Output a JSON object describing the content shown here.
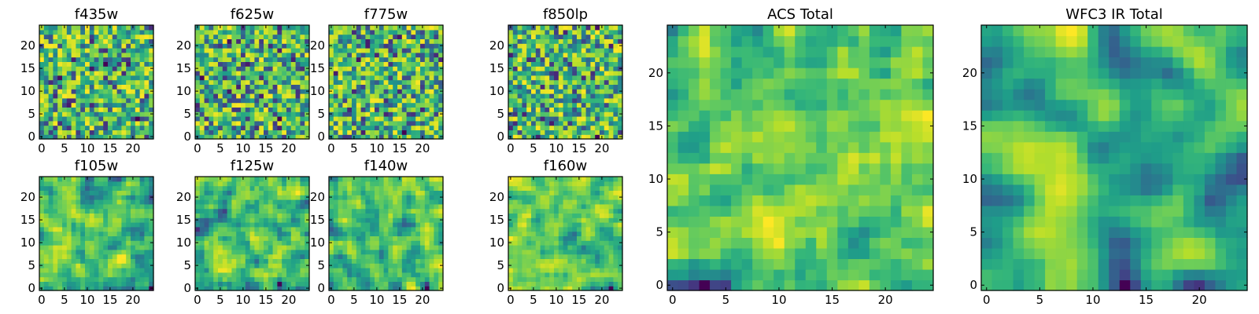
{
  "figure_title": "",
  "chart_data": [
    {
      "type": "heatmap",
      "title": "f435w",
      "xticks": [
        0,
        5,
        10,
        15,
        20
      ],
      "yticks": [
        0,
        5,
        10,
        15,
        20
      ],
      "xlim": [
        0,
        24
      ],
      "ylim": [
        0,
        24
      ],
      "grid": false,
      "size": 25,
      "seed": 11,
      "smooth": 0,
      "colormap": "viridis"
    },
    {
      "type": "heatmap",
      "title": "f625w",
      "xticks": [
        0,
        5,
        10,
        15,
        20
      ],
      "yticks": [
        0,
        5,
        10,
        15,
        20
      ],
      "xlim": [
        0,
        24
      ],
      "ylim": [
        0,
        24
      ],
      "grid": false,
      "size": 25,
      "seed": 23,
      "smooth": 0,
      "colormap": "viridis"
    },
    {
      "type": "heatmap",
      "title": "f775w",
      "xticks": [
        0,
        5,
        10,
        15,
        20
      ],
      "yticks": [
        0,
        5,
        10,
        15,
        20
      ],
      "xlim": [
        0,
        24
      ],
      "ylim": [
        0,
        24
      ],
      "grid": false,
      "size": 25,
      "seed": 37,
      "smooth": 0,
      "colormap": "viridis"
    },
    {
      "type": "heatmap",
      "title": "f850lp",
      "xticks": [
        0,
        5,
        10,
        15,
        20
      ],
      "yticks": [
        0,
        5,
        10,
        15,
        20
      ],
      "xlim": [
        0,
        24
      ],
      "ylim": [
        0,
        24
      ],
      "grid": false,
      "size": 25,
      "seed": 41,
      "smooth": 0,
      "colormap": "viridis"
    },
    {
      "type": "heatmap",
      "title": "f105w",
      "xticks": [
        0,
        5,
        10,
        15,
        20
      ],
      "yticks": [
        0,
        5,
        10,
        15,
        20
      ],
      "xlim": [
        0,
        24
      ],
      "ylim": [
        0,
        24
      ],
      "grid": false,
      "size": 25,
      "seed": 53,
      "smooth": 1,
      "colormap": "viridis"
    },
    {
      "type": "heatmap",
      "title": "f125w",
      "xticks": [
        0,
        5,
        10,
        15,
        20
      ],
      "yticks": [
        0,
        5,
        10,
        15,
        20
      ],
      "xlim": [
        0,
        24
      ],
      "ylim": [
        0,
        24
      ],
      "grid": false,
      "size": 25,
      "seed": 67,
      "smooth": 1,
      "colormap": "viridis"
    },
    {
      "type": "heatmap",
      "title": "f140w",
      "xticks": [
        0,
        5,
        10,
        15,
        20
      ],
      "yticks": [
        0,
        5,
        10,
        15,
        20
      ],
      "xlim": [
        0,
        24
      ],
      "ylim": [
        0,
        24
      ],
      "grid": false,
      "size": 25,
      "seed": 79,
      "smooth": 1,
      "colormap": "viridis"
    },
    {
      "type": "heatmap",
      "title": "f160w",
      "xticks": [
        0,
        5,
        10,
        15,
        20
      ],
      "yticks": [
        0,
        5,
        10,
        15,
        20
      ],
      "xlim": [
        0,
        24
      ],
      "ylim": [
        0,
        24
      ],
      "grid": false,
      "size": 25,
      "seed": 83,
      "smooth": 1,
      "colormap": "viridis"
    },
    {
      "type": "heatmap",
      "title": "ACS Total",
      "xticks": [
        0,
        5,
        10,
        15,
        20
      ],
      "yticks": [
        0,
        5,
        10,
        15,
        20
      ],
      "xlim": [
        0,
        24
      ],
      "ylim": [
        0,
        24
      ],
      "grid": false,
      "size": 25,
      "seed": 97,
      "smooth": 1,
      "colormap": "viridis"
    },
    {
      "type": "heatmap",
      "title": "WFC3 IR Total",
      "xticks": [
        0,
        5,
        10,
        15,
        20
      ],
      "yticks": [
        0,
        5,
        10,
        15,
        20
      ],
      "xlim": [
        0,
        24
      ],
      "ylim": [
        0,
        24
      ],
      "grid": false,
      "size": 25,
      "seed": 101,
      "smooth": 2,
      "colormap": "viridis"
    }
  ]
}
